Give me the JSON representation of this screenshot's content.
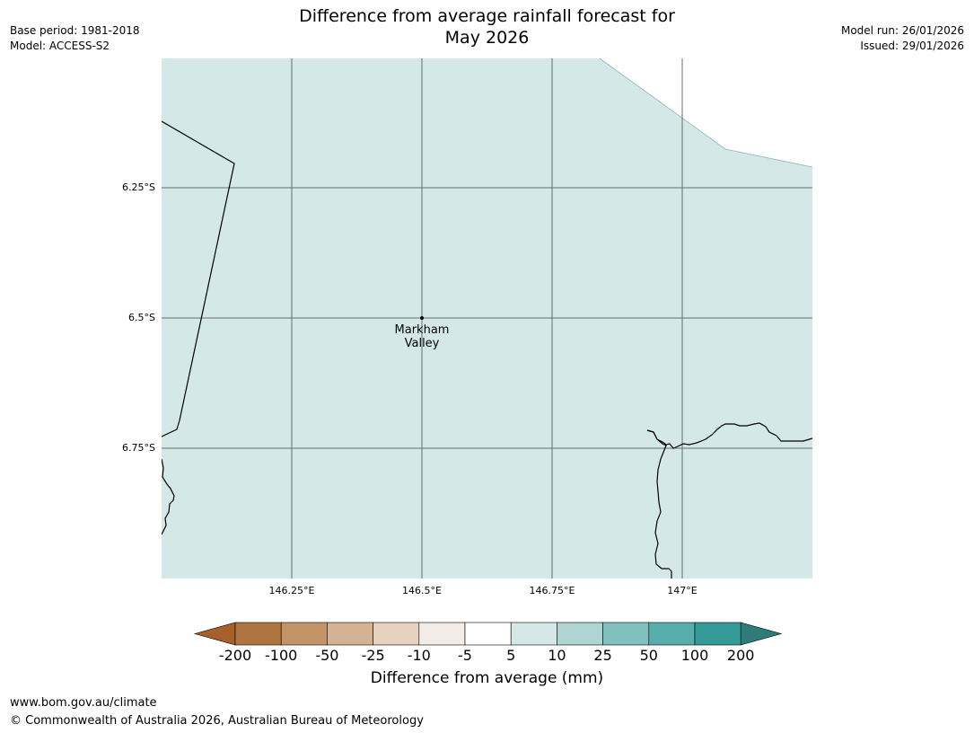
{
  "title": "Difference from average rainfall forecast for\nMay 2026",
  "meta_left": [
    "Base period: 1981-2018",
    "Model: ACCESS-S2"
  ],
  "meta_right": [
    "Model run: 26/01/2026",
    "Issued: 29/01/2026"
  ],
  "map": {
    "fill_color": "#d4e8e7",
    "lat_labels": [
      "6.25°S",
      "6.5°S",
      "6.75°S"
    ],
    "lon_labels": [
      "146.25°E",
      "146.5°E",
      "146.75°E",
      "147°E"
    ],
    "place": {
      "name": "Markham\nValley"
    }
  },
  "colorbar": {
    "colors": [
      "#a6612a",
      "#af7540",
      "#c29467",
      "#d3b393",
      "#e6d2be",
      "#f2ebe6",
      "#ffffff",
      "#d4e8e7",
      "#afd4d3",
      "#80c0bd",
      "#58aeac",
      "#339a98",
      "#2e7b79"
    ],
    "ticks": [
      "-200",
      "-100",
      "-50",
      "-25",
      "-10",
      "-5",
      "5",
      "10",
      "25",
      "50",
      "100",
      "200"
    ],
    "label": "Difference from average (mm)"
  },
  "footer": {
    "url": "www.bom.gov.au/climate",
    "copyright": "© Commonwealth of Australia 2026, Australian Bureau of Meteorology"
  }
}
